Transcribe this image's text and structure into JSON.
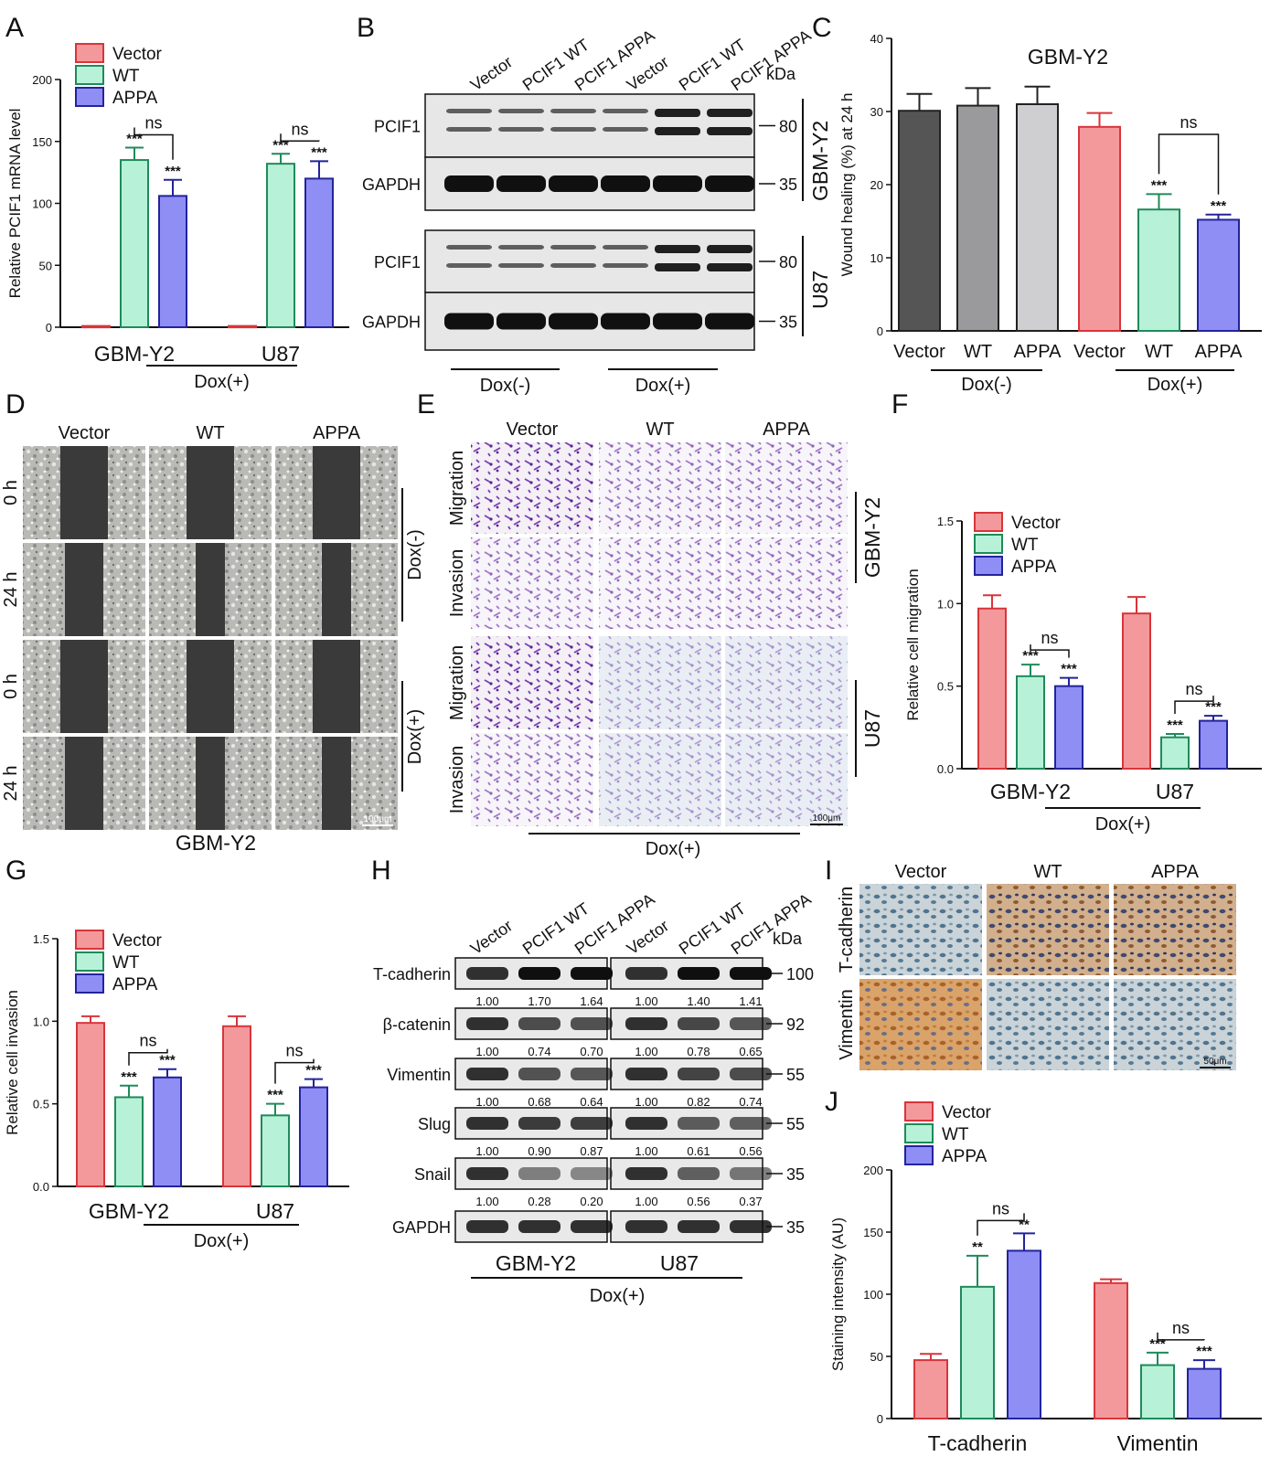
{
  "panels": {
    "A": "A",
    "B": "B",
    "C": "C",
    "D": "D",
    "E": "E",
    "F": "F",
    "G": "G",
    "H": "H",
    "I": "I",
    "J": "J"
  },
  "legend": [
    "Vector",
    "WT",
    "APPA"
  ],
  "colors": {
    "vector": "#f4999b",
    "vector_edge": "#d9343b",
    "wt": "#b7f2d8",
    "wt_edge": "#1f8a5a",
    "appa": "#8e8ef5",
    "appa_edge": "#23239c",
    "dark": "#555555",
    "mid": "#9a9a9c",
    "light": "#cfcfd1"
  },
  "common": {
    "dox_plus": "Dox(+)",
    "dox_minus": "Dox(-)",
    "ns": "ns",
    "sig3": "***",
    "sig2": "**",
    "kda": "kDa",
    "gbm": "GBM-Y2",
    "u87": "U87"
  },
  "chart_data": [
    {
      "panel": "A",
      "type": "bar",
      "categories": [
        "GBM-Y2",
        "U87"
      ],
      "series": [
        {
          "name": "Vector",
          "values": [
            1,
            1
          ],
          "errors": [
            0,
            0
          ]
        },
        {
          "name": "WT",
          "values": [
            135,
            132
          ],
          "errors": [
            10,
            8
          ]
        },
        {
          "name": "APPA",
          "values": [
            106,
            120
          ],
          "errors": [
            13,
            14
          ]
        }
      ],
      "ylabel": "Relative PCIF1 mRNA level",
      "ylim": [
        0,
        200
      ],
      "yticks": [
        "0",
        "50",
        "100",
        "150",
        "200"
      ],
      "group_label": "Dox(+)",
      "significance": [
        [
          "",
          "***",
          "***"
        ],
        [
          "",
          "***",
          "***"
        ]
      ],
      "comparison": [
        "ns",
        "ns"
      ]
    },
    {
      "panel": "C",
      "type": "bar",
      "title": "GBM-Y2",
      "categories": [
        "Vector",
        "WT",
        "APPA",
        "Vector",
        "WT",
        "APPA"
      ],
      "values": [
        30.1,
        30.8,
        31.0,
        27.9,
        16.6,
        15.2
      ],
      "errors": [
        2.3,
        2.4,
        2.4,
        1.9,
        2.1,
        0.7
      ],
      "ylabel": "Wound healing (%) at 24 h",
      "ylim": [
        0,
        40
      ],
      "yticks": [
        "0",
        "10",
        "20",
        "30",
        "40"
      ],
      "group_labels": [
        "Dox(-)",
        "Dox(+)"
      ],
      "significance": [
        "",
        "",
        "",
        "",
        "***",
        "***"
      ],
      "comparison": "ns"
    },
    {
      "panel": "F",
      "type": "bar",
      "categories": [
        "GBM-Y2",
        "U87"
      ],
      "series": [
        {
          "name": "Vector",
          "values": [
            0.97,
            0.94
          ],
          "errors": [
            0.08,
            0.1
          ]
        },
        {
          "name": "WT",
          "values": [
            0.56,
            0.19
          ],
          "errors": [
            0.07,
            0.02
          ]
        },
        {
          "name": "APPA",
          "values": [
            0.5,
            0.29
          ],
          "errors": [
            0.05,
            0.03
          ]
        }
      ],
      "ylabel": "Relative cell migration",
      "ylim": [
        0,
        1.5
      ],
      "yticks": [
        "0.0",
        "0.5",
        "1.0",
        "1.5"
      ],
      "group_label": "Dox(+)",
      "significance": [
        [
          "",
          "***",
          "***"
        ],
        [
          "",
          "***",
          "***"
        ]
      ],
      "comparison": [
        "ns",
        "ns"
      ]
    },
    {
      "panel": "G",
      "type": "bar",
      "categories": [
        "GBM-Y2",
        "U87"
      ],
      "series": [
        {
          "name": "Vector",
          "values": [
            0.99,
            0.97
          ],
          "errors": [
            0.04,
            0.06
          ]
        },
        {
          "name": "WT",
          "values": [
            0.54,
            0.43
          ],
          "errors": [
            0.07,
            0.07
          ]
        },
        {
          "name": "APPA",
          "values": [
            0.66,
            0.6
          ],
          "errors": [
            0.05,
            0.05
          ]
        }
      ],
      "ylabel": "Relative cell invasion",
      "ylim": [
        0,
        1.5
      ],
      "yticks": [
        "0.0",
        "0.5",
        "1.0",
        "1.5"
      ],
      "group_label": "Dox(+)",
      "significance": [
        [
          "",
          "***",
          "***"
        ],
        [
          "",
          "***",
          "***"
        ]
      ],
      "comparison": [
        "ns",
        "ns"
      ]
    },
    {
      "panel": "J",
      "type": "bar",
      "categories": [
        "T-cadherin",
        "Vimentin"
      ],
      "series": [
        {
          "name": "Vector",
          "values": [
            47,
            109
          ],
          "errors": [
            5,
            3
          ]
        },
        {
          "name": "WT",
          "values": [
            106,
            43
          ],
          "errors": [
            25,
            10
          ]
        },
        {
          "name": "APPA",
          "values": [
            135,
            40
          ],
          "errors": [
            14,
            7
          ]
        }
      ],
      "ylabel": "Staining intensity (AU)",
      "ylim": [
        0,
        200
      ],
      "yticks": [
        "0",
        "50",
        "100",
        "150",
        "200"
      ],
      "significance": [
        [
          "",
          "**",
          "**"
        ],
        [
          "",
          "***",
          "***"
        ]
      ],
      "comparison": [
        "ns",
        "ns"
      ]
    }
  ],
  "blot_B": {
    "lanes": [
      "Vector",
      "PCIF1 WT",
      "PCIF1 APPA",
      "Vector",
      "PCIF1 WT",
      "PCIF1 APPA"
    ],
    "rows": [
      {
        "label": "PCIF1",
        "kda": "80",
        "cell": "GBM-Y2"
      },
      {
        "label": "GAPDH",
        "kda": "35",
        "cell": "GBM-Y2"
      },
      {
        "label": "PCIF1",
        "kda": "80",
        "cell": "U87"
      },
      {
        "label": "GAPDH",
        "kda": "35",
        "cell": "U87"
      }
    ],
    "bottom": [
      "Dox(-)",
      "Dox(+)"
    ]
  },
  "wound_D": {
    "columns": [
      "Vector",
      "WT",
      "APPA"
    ],
    "rows": [
      "0 h",
      "24 h",
      "0 h",
      "24 h"
    ],
    "side": [
      "Dox(-)",
      "Dox(+)"
    ],
    "scale": "100μm",
    "caption": "GBM-Y2"
  },
  "transwell_E": {
    "columns": [
      "Vector",
      "WT",
      "APPA"
    ],
    "rows": [
      "Migration",
      "Invasion",
      "Migration",
      "Invasion"
    ],
    "side": [
      "GBM-Y2",
      "U87"
    ],
    "scale": "100μm",
    "bottom": "Dox(+)"
  },
  "blot_H": {
    "lanes": [
      "Vector",
      "PCIF1 WT",
      "PCIF1 APPA",
      "Vector",
      "PCIF1 WT",
      "PCIF1 APPA"
    ],
    "rows": [
      {
        "label": "T-cadherin",
        "kda": "100",
        "values": [
          "1.00",
          "1.70",
          "1.64",
          "1.00",
          "1.40",
          "1.41"
        ]
      },
      {
        "label": "β-catenin",
        "kda": "92",
        "values": [
          "1.00",
          "0.74",
          "0.70",
          "1.00",
          "0.78",
          "0.65"
        ]
      },
      {
        "label": "Vimentin",
        "kda": "55",
        "values": [
          "1.00",
          "0.68",
          "0.64",
          "1.00",
          "0.82",
          "0.74"
        ]
      },
      {
        "label": "Slug",
        "kda": "55",
        "values": [
          "1.00",
          "0.90",
          "0.87",
          "1.00",
          "0.61",
          "0.56"
        ]
      },
      {
        "label": "Snail",
        "kda": "35",
        "values": [
          "1.00",
          "0.28",
          "0.20",
          "1.00",
          "0.56",
          "0.37"
        ]
      },
      {
        "label": "GAPDH",
        "kda": "35",
        "values": []
      }
    ],
    "cells": [
      "GBM-Y2",
      "U87"
    ],
    "bottom": "Dox(+)"
  },
  "ihc_I": {
    "columns": [
      "Vector",
      "WT",
      "APPA"
    ],
    "rows": [
      "T-cadherin",
      "Vimentin"
    ],
    "scale": "50μm"
  }
}
